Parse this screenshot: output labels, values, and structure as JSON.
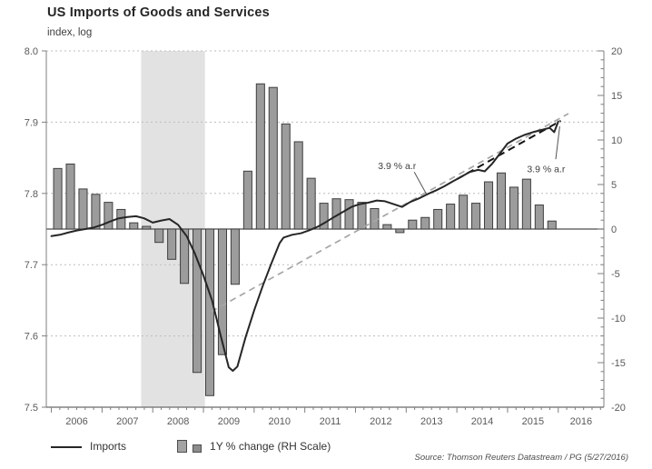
{
  "header": {
    "title": "US Imports of Goods and Services",
    "subtitle": "index, log"
  },
  "legend": {
    "items": [
      {
        "label": "Imports",
        "swatch": "line"
      },
      {
        "label": "1Y % change (RH Scale)",
        "swatch": "bar-squares"
      }
    ]
  },
  "source": "Source: Thomson Reuters Datastream / PG (5/27/2016)",
  "chart_data": {
    "type": "bar+line combo",
    "title": "US Imports of Goods and Services",
    "subtitle": "index, log",
    "x_axis": {
      "min": 2005.9,
      "max": 2016.9,
      "year_ticks": [
        2006,
        2007,
        2008,
        2009,
        2010,
        2011,
        2012,
        2013,
        2014,
        2015,
        2016
      ],
      "minor_divisions_per_year": 6
    },
    "left_axis": {
      "label": "index, log",
      "min": 7.5,
      "max": 8.0,
      "step": 0.1,
      "grid": "dotted"
    },
    "right_axis": {
      "label": "1Y % change",
      "min": -20,
      "max": 20,
      "major_step": 5,
      "minor_step": 1
    },
    "recession_band": {
      "from": 2007.77,
      "to": 2009.03
    },
    "bars": {
      "name": "1Y % change (RH Scale)",
      "scale": "right",
      "categories": [
        "2006 Q1",
        "2006 Q2",
        "2006 Q3",
        "2006 Q4",
        "2007 Q1",
        "2007 Q2",
        "2007 Q3",
        "2007 Q4",
        "2008 Q1",
        "2008 Q2",
        "2008 Q3",
        "2008 Q4",
        "2009 Q1",
        "2009 Q2",
        "2009 Q3",
        "2009 Q4",
        "2010 Q1",
        "2010 Q2",
        "2010 Q3",
        "2010 Q4",
        "2011 Q1",
        "2011 Q2",
        "2011 Q3",
        "2011 Q4",
        "2012 Q1",
        "2012 Q2",
        "2012 Q3",
        "2012 Q4",
        "2013 Q1",
        "2013 Q2",
        "2013 Q3",
        "2013 Q4",
        "2014 Q1",
        "2014 Q2",
        "2014 Q3",
        "2014 Q4",
        "2015 Q1",
        "2015 Q2",
        "2015 Q3",
        "2015 Q4"
      ],
      "values": [
        6.8,
        7.3,
        4.5,
        3.9,
        3.0,
        2.2,
        0.7,
        0.3,
        -1.5,
        -3.4,
        -6.1,
        -16.1,
        -18.7,
        -14.1,
        -6.2,
        6.5,
        16.3,
        15.9,
        11.8,
        9.8,
        5.7,
        2.9,
        3.4,
        3.3,
        3.0,
        2.3,
        0.5,
        -0.4,
        1.0,
        1.3,
        2.2,
        2.8,
        3.8,
        2.9,
        5.3,
        6.3,
        4.7,
        5.6,
        2.7,
        0.9
      ],
      "start_year": 2006
    },
    "line": {
      "name": "Imports",
      "scale": "left",
      "points": [
        [
          2006.0,
          7.74
        ],
        [
          2006.17,
          7.742
        ],
        [
          2006.33,
          7.745
        ],
        [
          2006.5,
          7.748
        ],
        [
          2006.67,
          7.75
        ],
        [
          2006.83,
          7.752
        ],
        [
          2007.0,
          7.756
        ],
        [
          2007.17,
          7.761
        ],
        [
          2007.33,
          7.765
        ],
        [
          2007.5,
          7.767
        ],
        [
          2007.67,
          7.768
        ],
        [
          2007.83,
          7.765
        ],
        [
          2008.0,
          7.759
        ],
        [
          2008.17,
          7.762
        ],
        [
          2008.33,
          7.764
        ],
        [
          2008.5,
          7.756
        ],
        [
          2008.67,
          7.74
        ],
        [
          2008.83,
          7.716
        ],
        [
          2009.0,
          7.685
        ],
        [
          2009.17,
          7.65
        ],
        [
          2009.33,
          7.603
        ],
        [
          2009.5,
          7.556
        ],
        [
          2009.58,
          7.551
        ],
        [
          2009.67,
          7.557
        ],
        [
          2009.83,
          7.598
        ],
        [
          2010.0,
          7.636
        ],
        [
          2010.17,
          7.67
        ],
        [
          2010.33,
          7.7
        ],
        [
          2010.5,
          7.73
        ],
        [
          2010.58,
          7.738
        ],
        [
          2010.75,
          7.742
        ],
        [
          2010.92,
          7.744
        ],
        [
          2011.08,
          7.748
        ],
        [
          2011.25,
          7.753
        ],
        [
          2011.42,
          7.76
        ],
        [
          2011.58,
          7.767
        ],
        [
          2011.75,
          7.774
        ],
        [
          2011.92,
          7.781
        ],
        [
          2012.08,
          7.785
        ],
        [
          2012.25,
          7.787
        ],
        [
          2012.42,
          7.79
        ],
        [
          2012.58,
          7.789
        ],
        [
          2012.75,
          7.785
        ],
        [
          2012.92,
          7.781
        ],
        [
          2013.08,
          7.788
        ],
        [
          2013.25,
          7.793
        ],
        [
          2013.42,
          7.799
        ],
        [
          2013.58,
          7.804
        ],
        [
          2013.75,
          7.81
        ],
        [
          2013.92,
          7.817
        ],
        [
          2014.08,
          7.823
        ],
        [
          2014.25,
          7.83
        ],
        [
          2014.42,
          7.833
        ],
        [
          2014.55,
          7.831
        ],
        [
          2014.7,
          7.842
        ],
        [
          2014.85,
          7.856
        ],
        [
          2015.0,
          7.87
        ],
        [
          2015.17,
          7.877
        ],
        [
          2015.33,
          7.882
        ],
        [
          2015.5,
          7.886
        ],
        [
          2015.67,
          7.889
        ],
        [
          2015.83,
          7.892
        ],
        [
          2015.92,
          7.886
        ],
        [
          2016.0,
          7.901
        ]
      ]
    },
    "trend_lines": [
      {
        "name": "3.9 % a.r trend (post-recession)",
        "style": "dashed-gray",
        "points": [
          [
            2009.15,
            7.634
          ],
          [
            2016.2,
            7.912
          ]
        ]
      },
      {
        "name": "3.9 % a.r trend (recent)",
        "style": "dashed-black",
        "points": [
          [
            2014.0,
            7.82
          ],
          [
            2016.05,
            7.902
          ]
        ]
      }
    ],
    "annotations": [
      {
        "text": "3.9 % a.r",
        "x": 2012.82,
        "y": 7.839,
        "leader": [
          [
            2013.16,
            7.83
          ],
          [
            2013.4,
            7.799
          ]
        ]
      },
      {
        "text": "3.9 % a.r",
        "x": 2015.76,
        "y": 7.835,
        "leader": [
          [
            2015.95,
            7.848
          ],
          [
            2016.03,
            7.894
          ]
        ]
      }
    ],
    "colors": {
      "bar_fill": "#9c9c9c",
      "bar_stroke": "#3f3f3f",
      "imports_line": "#262626",
      "trend_gray": "#a6a6a6",
      "trend_black": "#141414",
      "recession_band": "#e2e2e2",
      "gridline": "#bdbdbd",
      "axis": "#7f7f7f",
      "zero_line": "#4d4d4d",
      "tick_text": "#595959",
      "annotation_text": "#3f3f3f"
    }
  }
}
